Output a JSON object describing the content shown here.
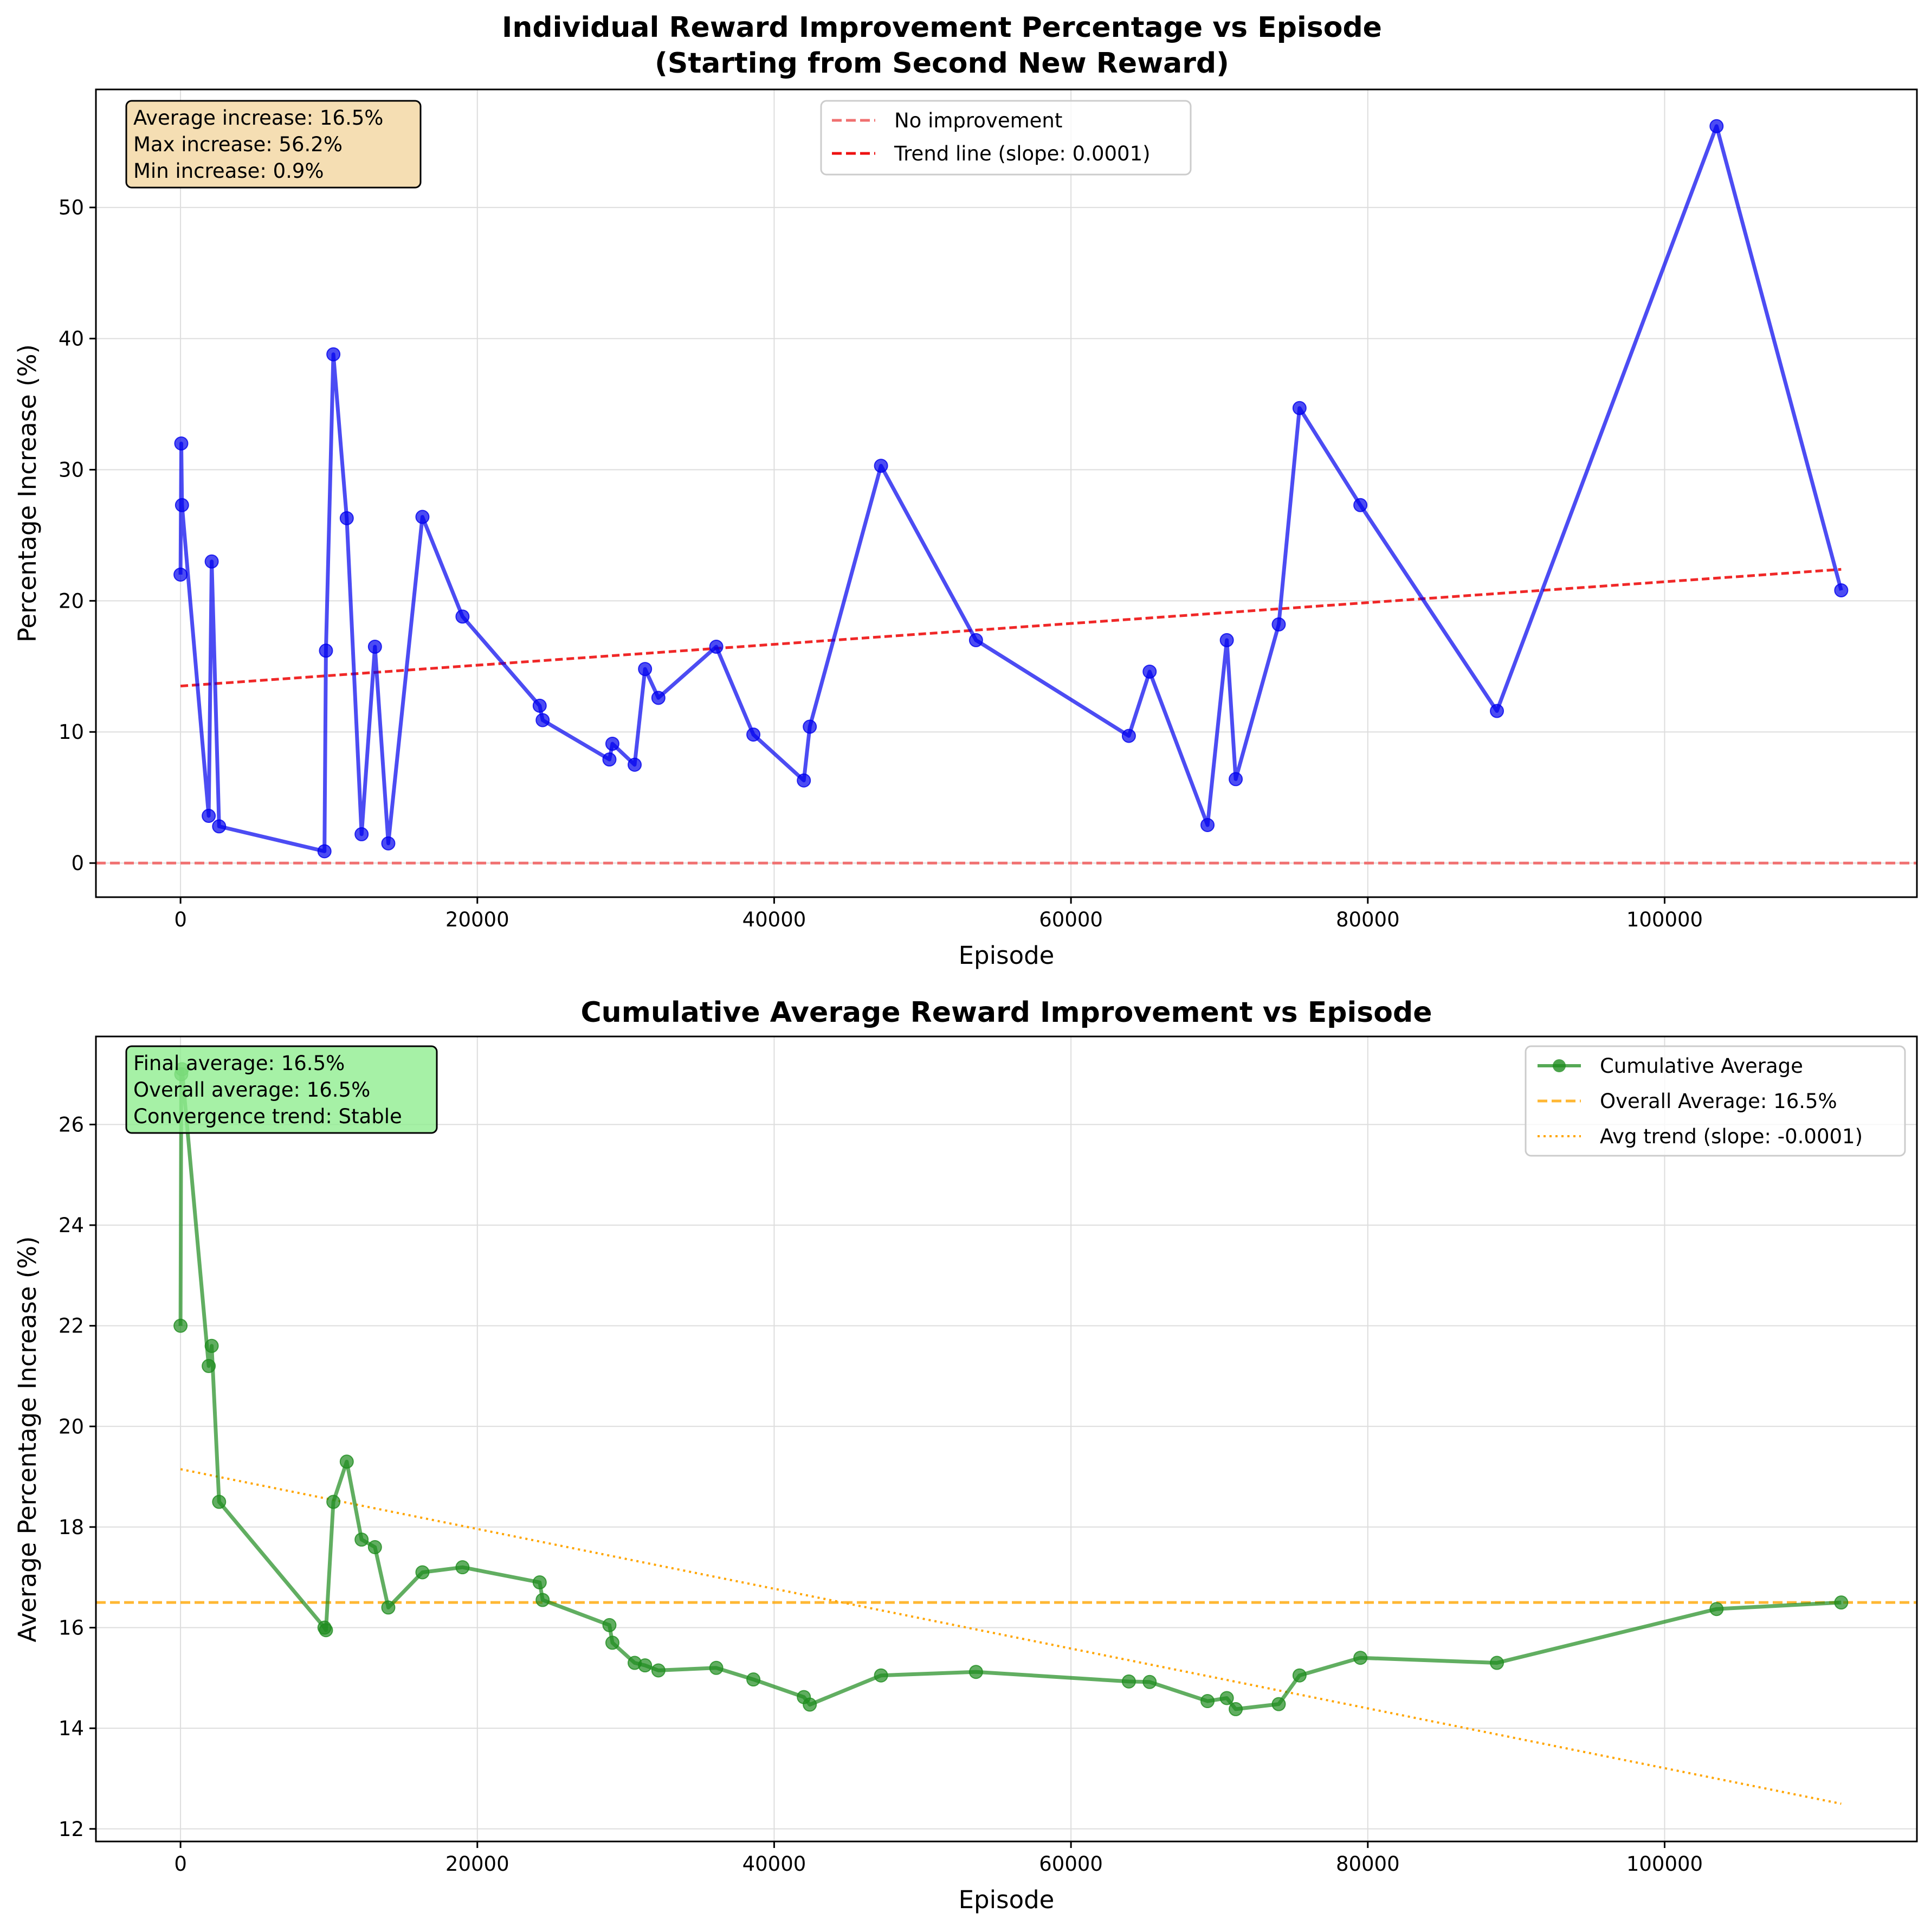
{
  "chart_data": [
    {
      "type": "line",
      "title": "Individual Reward Improvement Percentage vs Episode",
      "subtitle": "(Starting from Second New Reward)",
      "xlabel": "Episode",
      "ylabel": "Percentage Increase (%)",
      "xlim": [
        -5700,
        117000
      ],
      "ylim": [
        -2.6,
        59.0
      ],
      "xticks": [
        0,
        20000,
        40000,
        60000,
        80000,
        100000
      ],
      "yticks": [
        0,
        10,
        20,
        30,
        40,
        50
      ],
      "grid": true,
      "legend": "upper center",
      "colors": {
        "series": "#0000ee",
        "trend": "#ee1111",
        "zero": "#f07070"
      },
      "series": [
        {
          "name": "",
          "x": [
            0,
            50,
            100,
            1900,
            2100,
            2600,
            9700,
            9800,
            10300,
            11200,
            12200,
            13100,
            14000,
            16300,
            19000,
            24200,
            24400,
            28900,
            29100,
            30600,
            31300,
            32200,
            36100,
            38600,
            42000,
            42400,
            47200,
            53600,
            63900,
            65300,
            69200,
            70500,
            71100,
            74000,
            75400,
            79500,
            88700,
            103500,
            111900
          ],
          "y": [
            22.0,
            32.0,
            27.3,
            3.6,
            23.0,
            2.8,
            0.9,
            16.2,
            38.8,
            26.3,
            2.2,
            16.5,
            1.5,
            26.4,
            18.8,
            12.0,
            10.9,
            7.9,
            9.1,
            7.5,
            14.8,
            12.6,
            16.5,
            9.8,
            6.3,
            10.4,
            30.3,
            17.0,
            9.7,
            14.6,
            2.9,
            17.0,
            6.4,
            18.2,
            34.7,
            27.3,
            11.6,
            56.2,
            20.8
          ]
        }
      ],
      "reference_lines": [
        {
          "name": "No improvement",
          "y": 0
        },
        {
          "name": "Trend line (slope: 0.0001)",
          "x": [
            0,
            111900
          ],
          "y": [
            13.5,
            22.4
          ]
        }
      ],
      "annotation": [
        "Average increase: 16.5%",
        "Max increase: 56.2%",
        "Min increase: 0.9%"
      ]
    },
    {
      "type": "line",
      "title": "Cumulative Average Reward Improvement vs Episode",
      "xlabel": "Episode",
      "ylabel": "Average Percentage Increase (%)",
      "xlim": [
        -5700,
        117000
      ],
      "ylim": [
        11.75,
        27.75
      ],
      "xticks": [
        0,
        20000,
        40000,
        60000,
        80000,
        100000
      ],
      "yticks": [
        12,
        14,
        16,
        18,
        20,
        22,
        24,
        26
      ],
      "grid": true,
      "legend": "upper right",
      "colors": {
        "series": "#1e8c1e",
        "overall": "#ffa500",
        "trend": "#ffa500"
      },
      "series": [
        {
          "name": "Cumulative Average",
          "x": [
            0,
            50,
            100,
            1900,
            2100,
            2600,
            9700,
            9800,
            10300,
            11200,
            12200,
            13100,
            14000,
            16300,
            19000,
            24200,
            24400,
            28900,
            29100,
            30600,
            31300,
            32200,
            36100,
            38600,
            42000,
            42400,
            47200,
            53600,
            63900,
            65300,
            69200,
            70500,
            71100,
            74000,
            75400,
            79500,
            88700,
            103500,
            111900
          ],
          "y": [
            22.0,
            27.0,
            27.1,
            21.2,
            21.6,
            18.5,
            16.0,
            15.95,
            18.5,
            19.3,
            17.75,
            17.6,
            16.4,
            17.1,
            17.2,
            16.9,
            16.55,
            16.05,
            15.7,
            15.3,
            15.25,
            15.15,
            15.2,
            14.97,
            14.62,
            14.47,
            15.05,
            15.12,
            14.93,
            14.92,
            14.54,
            14.6,
            14.38,
            14.48,
            15.05,
            15.4,
            15.3,
            16.37,
            16.5
          ]
        }
      ],
      "reference_lines": [
        {
          "name": "Overall Average: 16.5%",
          "y": 16.5
        },
        {
          "name": "Avg trend (slope: -0.0001)",
          "x": [
            0,
            111900
          ],
          "y": [
            19.15,
            12.5
          ]
        }
      ],
      "annotation": [
        "Final average: 16.5%",
        "Overall average: 16.5%",
        "Convergence trend: Stable"
      ]
    }
  ]
}
